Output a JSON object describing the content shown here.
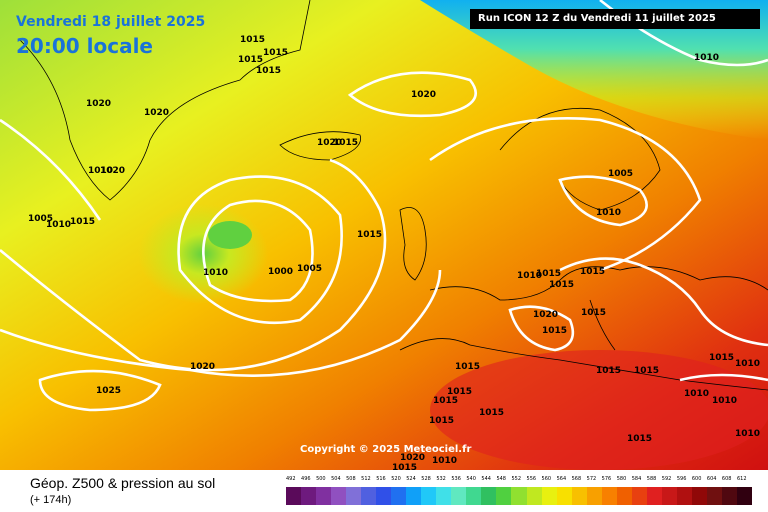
{
  "header": {
    "date": "Vendredi 18 juillet 2025",
    "time": "20:00 locale",
    "run": "Run ICON 12 Z du Vendredi 11 juillet 2025"
  },
  "copyright": "Copyright © 2025 Meteociel.fr",
  "footer": {
    "title": "Géop. Z500 & pression au sol",
    "lead_time": "(+ 174h)"
  },
  "isobar_labels": [
    "1015",
    "1015",
    "1015",
    "1015",
    "1020",
    "1020",
    "1020",
    "1010",
    "1020",
    "1010",
    "1015",
    "1020",
    "1005",
    "1010",
    "1015",
    "1015",
    "1005",
    "1010",
    "1010",
    "1000",
    "1005",
    "1015",
    "1010",
    "1015",
    "1015",
    "1020",
    "1015",
    "1015",
    "1015",
    "1020",
    "1025",
    "1015",
    "1015",
    "1015",
    "1015",
    "1015",
    "1010",
    "1015",
    "1010",
    "1015",
    "1010",
    "1015",
    "1010",
    "1020",
    "1010",
    "1015"
  ],
  "scale": {
    "labels": [
      "492",
      "496",
      "500",
      "504",
      "508",
      "512",
      "516",
      "520",
      "524",
      "528",
      "532",
      "536",
      "540",
      "544",
      "548",
      "552",
      "556",
      "560",
      "564",
      "568",
      "572",
      "576",
      "580",
      "584",
      "588",
      "592",
      "596",
      "600",
      "604",
      "608",
      "612"
    ],
    "colors": [
      "#5a0a5a",
      "#6e1a7e",
      "#8030a0",
      "#9050c0",
      "#8070d8",
      "#5060e0",
      "#3050e8",
      "#2070f0",
      "#10a0f8",
      "#20c8f8",
      "#40e0e8",
      "#60e8c0",
      "#40d890",
      "#30c060",
      "#50d040",
      "#90e030",
      "#c0e820",
      "#e8f010",
      "#f8e000",
      "#f8c000",
      "#f8a000",
      "#f88000",
      "#f06000",
      "#e84010",
      "#e02020",
      "#c81818",
      "#b01010",
      "#900808",
      "#701010",
      "#500810",
      "#300010"
    ]
  }
}
